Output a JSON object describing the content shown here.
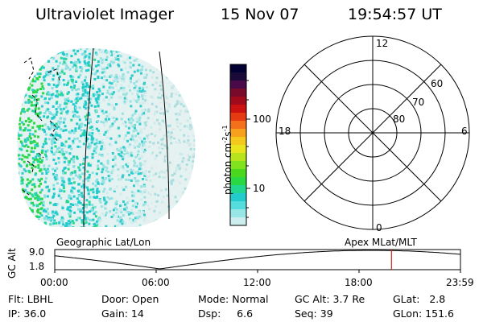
{
  "header": {
    "instrument": "Ultraviolet Imager",
    "date": "15 Nov 07",
    "time": "19:54:57 UT"
  },
  "colorbar": {
    "label_base": "photon cm",
    "label_exp1": "-2",
    "label_mid": "s",
    "label_exp2": "-1",
    "ticks": [
      "100",
      "10"
    ],
    "colors": [
      "#000033",
      "#1a0a3a",
      "#4a0a4a",
      "#7a0a2a",
      "#a00a1a",
      "#cc1111",
      "#e63a11",
      "#f5701a",
      "#f7a01e",
      "#f5c81e",
      "#e8e41e",
      "#b8e41e",
      "#80e31e",
      "#4ad81e",
      "#2ad844",
      "#22d890",
      "#22cccc",
      "#55dddd",
      "#99e6e6",
      "#cceeee"
    ]
  },
  "polar_plot": {
    "labels": {
      "top": "12",
      "bottom": "0",
      "left": "18",
      "right": "6",
      "lat_60": "60",
      "lat_70": "70",
      "lat_80": "80"
    }
  },
  "timeline": {
    "left_title": "Geographic Lat/Lon",
    "right_title": "Apex MLat/MLT",
    "axis_label": "GC Alt",
    "y_max": "9.0",
    "y_min": "1.8",
    "x_ticks": [
      "00:00",
      "06:00",
      "12:00",
      "18:00",
      "23:59"
    ],
    "current_time_fraction": 0.83
  },
  "info": {
    "row1": [
      "Flt: LBHL",
      "Door: Open",
      "Mode: Normal",
      "GC Alt: 3.7 Re",
      "GLat:   2.8"
    ],
    "row2": [
      "IP: 36.0",
      "Gain: 14",
      "Dsp:     6.6",
      "Seq: 39",
      "GLon: 151.6"
    ]
  },
  "colors": {
    "marker": "#cc2222",
    "ink": "#000000"
  }
}
